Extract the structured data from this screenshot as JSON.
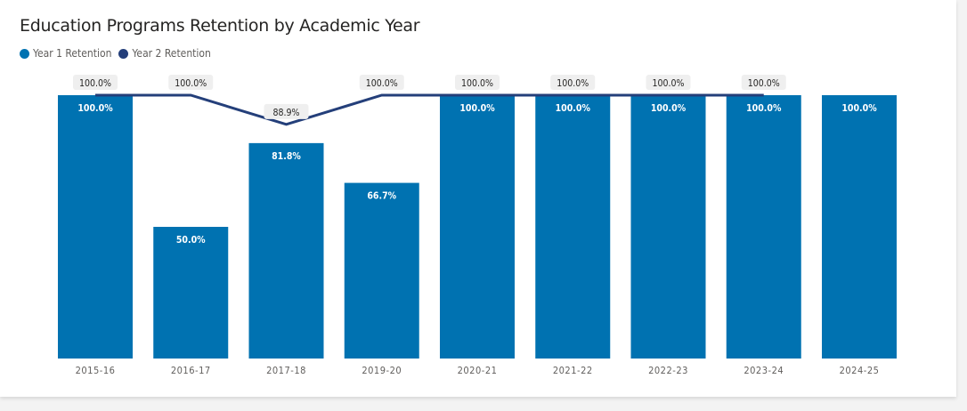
{
  "chart_data": {
    "type": "bar+line",
    "title": "Education Programs Retention by Academic Year",
    "categories": [
      "2015-16",
      "2016-17",
      "2017-18",
      "2019-20",
      "2020-21",
      "2021-22",
      "2022-23",
      "2023-24",
      "2024-25"
    ],
    "series": [
      {
        "name": "Year 1 Retention",
        "type": "bar",
        "color": "#0072b1",
        "values": [
          100,
          50,
          81.8,
          66.7,
          100,
          100,
          100,
          100,
          100
        ],
        "labels": [
          "100.0%",
          "50.0%",
          "81.8%",
          "66.7%",
          "100.0%",
          "100.0%",
          "100.0%",
          "100.0%",
          "100.0%"
        ]
      },
      {
        "name": "Year 2 Retention",
        "type": "line",
        "color": "#243f7a",
        "values": [
          100,
          100,
          88.9,
          100,
          100,
          100,
          100,
          100,
          null
        ],
        "labels": [
          "100.0%",
          "100.0%",
          "88.9%",
          "100.0%",
          "100.0%",
          "100.0%",
          "100.0%",
          "100.0%",
          null
        ]
      }
    ],
    "ylim": [
      0,
      100
    ],
    "grid": false,
    "legend_position": "top-left"
  }
}
